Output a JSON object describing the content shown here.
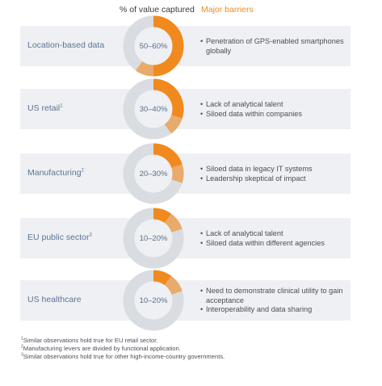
{
  "headers": {
    "value": "% of value captured",
    "barriers": "Major barriers"
  },
  "colors": {
    "accent": "#f18a1e",
    "ring": "#d9dde2",
    "band": "#eef0f3",
    "label": "#5d7592"
  },
  "chart_data": {
    "type": "donut",
    "rows": [
      {
        "label": "Location-based data",
        "footnote": "",
        "range_text": "50–60%",
        "range": [
          50,
          60
        ],
        "barriers": [
          "Penetration of GPS-enabled smartphones globally"
        ]
      },
      {
        "label": "US retail",
        "footnote": "1",
        "range_text": "30–40%",
        "range": [
          30,
          40
        ],
        "barriers": [
          "Lack of analytical talent",
          "Siloed data within companies"
        ]
      },
      {
        "label": "Manufacturing",
        "footnote": "2",
        "range_text": "20–30%",
        "range": [
          20,
          30
        ],
        "barriers": [
          "Siloed data in legacy IT systems",
          "Leadership skeptical of impact"
        ]
      },
      {
        "label": "EU public sector",
        "footnote": "3",
        "range_text": "10–20%",
        "range": [
          10,
          20
        ],
        "barriers": [
          "Lack of analytical talent",
          "Siloed data within different agencies"
        ]
      },
      {
        "label": "US healthcare",
        "footnote": "",
        "range_text": "10–20%",
        "range": [
          10,
          20
        ],
        "barriers": [
          "Need to demonstrate clinical utility to gain acceptance",
          "Interoperability and data sharing"
        ]
      }
    ]
  },
  "footnotes": [
    {
      "mark": "1",
      "text": "Similar observations hold true for EU retail sector."
    },
    {
      "mark": "2",
      "text": "Manufacturing levers are divided by functional application."
    },
    {
      "mark": "3",
      "text": "Similar observations hold true for other high-income-country governments."
    }
  ]
}
